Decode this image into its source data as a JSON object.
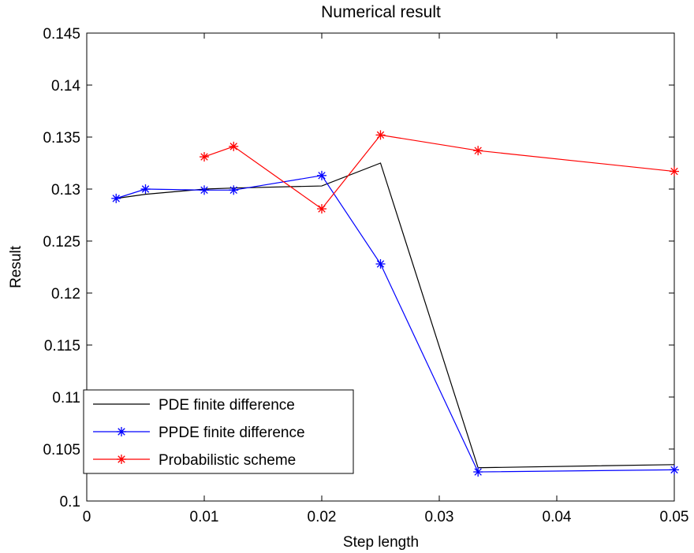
{
  "chart_data": {
    "type": "line",
    "title": "Numerical result",
    "xlabel": "Step length",
    "ylabel": "Result",
    "xlim": [
      0,
      0.05
    ],
    "ylim": [
      0.1,
      0.145
    ],
    "xticks": [
      0,
      0.01,
      0.02,
      0.03,
      0.04,
      0.05
    ],
    "xtick_labels": [
      "0",
      "0.01",
      "0.02",
      "0.03",
      "0.04",
      "0.05"
    ],
    "yticks": [
      0.1,
      0.105,
      0.11,
      0.115,
      0.12,
      0.125,
      0.13,
      0.135,
      0.14,
      0.145
    ],
    "ytick_labels": [
      "0.1",
      "0.105",
      "0.11",
      "0.115",
      "0.12",
      "0.125",
      "0.13",
      "0.135",
      "0.14",
      "0.145"
    ],
    "grid": false,
    "legend_position": "bottom-left",
    "series": [
      {
        "name": "PDE finite difference",
        "color": "#000000",
        "marker": "none",
        "x": [
          0.0025,
          0.005,
          0.01,
          0.0125,
          0.02,
          0.025,
          0.0333,
          0.05
        ],
        "y": [
          0.1291,
          0.1295,
          0.13,
          0.1301,
          0.1303,
          0.1325,
          0.1032,
          0.1035
        ]
      },
      {
        "name": "PPDE finite difference",
        "color": "#0000ff",
        "marker": "star",
        "x": [
          0.0025,
          0.005,
          0.01,
          0.0125,
          0.02,
          0.025,
          0.0333,
          0.05
        ],
        "y": [
          0.1291,
          0.13,
          0.1299,
          0.1299,
          0.1313,
          0.1228,
          0.1028,
          0.103
        ]
      },
      {
        "name": "Probabilistic scheme",
        "color": "#ff0000",
        "marker": "star",
        "x": [
          0.01,
          0.0125,
          0.02,
          0.025,
          0.0333,
          0.05
        ],
        "y": [
          0.1331,
          0.1341,
          0.1281,
          0.1352,
          0.1337,
          0.1317
        ]
      }
    ]
  }
}
